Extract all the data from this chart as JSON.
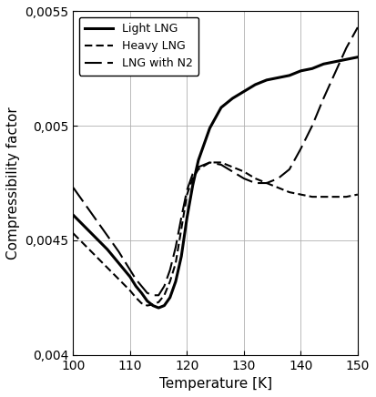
{
  "title": "",
  "xlabel": "Temperature [K]",
  "ylabel": "Compressibility factor",
  "xlim": [
    100,
    150
  ],
  "ylim": [
    0.004,
    0.0055
  ],
  "yticks": [
    0.004,
    0.0045,
    0.005,
    0.0055
  ],
  "ytick_labels": [
    "0,004",
    "0,0045",
    "0,005",
    "0,0055"
  ],
  "xticks": [
    100,
    110,
    120,
    130,
    140,
    150
  ],
  "light_lng": {
    "x": [
      100,
      102,
      104,
      106,
      108,
      110,
      111,
      112,
      113,
      114,
      115,
      116,
      117,
      118,
      119,
      120,
      121,
      122,
      124,
      126,
      128,
      130,
      132,
      134,
      136,
      138,
      140,
      142,
      144,
      146,
      148,
      150
    ],
    "y": [
      0.00461,
      0.00456,
      0.00451,
      0.00446,
      0.0044,
      0.00434,
      0.0043,
      0.00427,
      0.004235,
      0.004215,
      0.004205,
      0.004215,
      0.00425,
      0.00432,
      0.00443,
      0.0046,
      0.00474,
      0.00485,
      0.00499,
      0.00508,
      0.00512,
      0.00515,
      0.00518,
      0.0052,
      0.00521,
      0.00522,
      0.00524,
      0.00525,
      0.00527,
      0.00528,
      0.00529,
      0.0053
    ],
    "label": "Light LNG",
    "linewidth": 2.2
  },
  "heavy_lng": {
    "x": [
      100,
      102,
      104,
      106,
      108,
      110,
      111,
      112,
      113,
      114,
      115,
      116,
      117,
      118,
      119,
      120,
      121,
      122,
      124,
      126,
      128,
      130,
      132,
      134,
      136,
      138,
      140,
      142,
      144,
      146,
      148,
      150
    ],
    "y": [
      0.00453,
      0.00448,
      0.00443,
      0.00438,
      0.00433,
      0.00428,
      0.00425,
      0.004225,
      0.004215,
      0.00422,
      0.00423,
      0.00426,
      0.00432,
      0.0044,
      0.00455,
      0.0047,
      0.00477,
      0.00481,
      0.00484,
      0.00484,
      0.00482,
      0.0048,
      0.00477,
      0.00475,
      0.00473,
      0.00471,
      0.0047,
      0.00469,
      0.00469,
      0.00469,
      0.00469,
      0.0047
    ],
    "label": "Heavy LNG",
    "linewidth": 1.5
  },
  "lng_n2": {
    "x": [
      100,
      102,
      104,
      106,
      108,
      110,
      111,
      112,
      113,
      114,
      115,
      116,
      117,
      118,
      119,
      120,
      121,
      122,
      124,
      126,
      128,
      130,
      132,
      134,
      136,
      138,
      140,
      142,
      144,
      146,
      148,
      150
    ],
    "y": [
      0.00473,
      0.00466,
      0.00459,
      0.00452,
      0.00445,
      0.00437,
      0.00433,
      0.0043,
      0.00427,
      0.00426,
      0.00426,
      0.0043,
      0.00437,
      0.00447,
      0.0046,
      0.00472,
      0.00479,
      0.00482,
      0.00484,
      0.00483,
      0.0048,
      0.00477,
      0.00475,
      0.00475,
      0.00477,
      0.00481,
      0.0049,
      0.005,
      0.00512,
      0.00523,
      0.00534,
      0.00543
    ],
    "label": "LNG with N2",
    "linewidth": 1.5
  },
  "background_color": "#ffffff",
  "line_color": "#000000",
  "grid_color": "#b0b0b0"
}
